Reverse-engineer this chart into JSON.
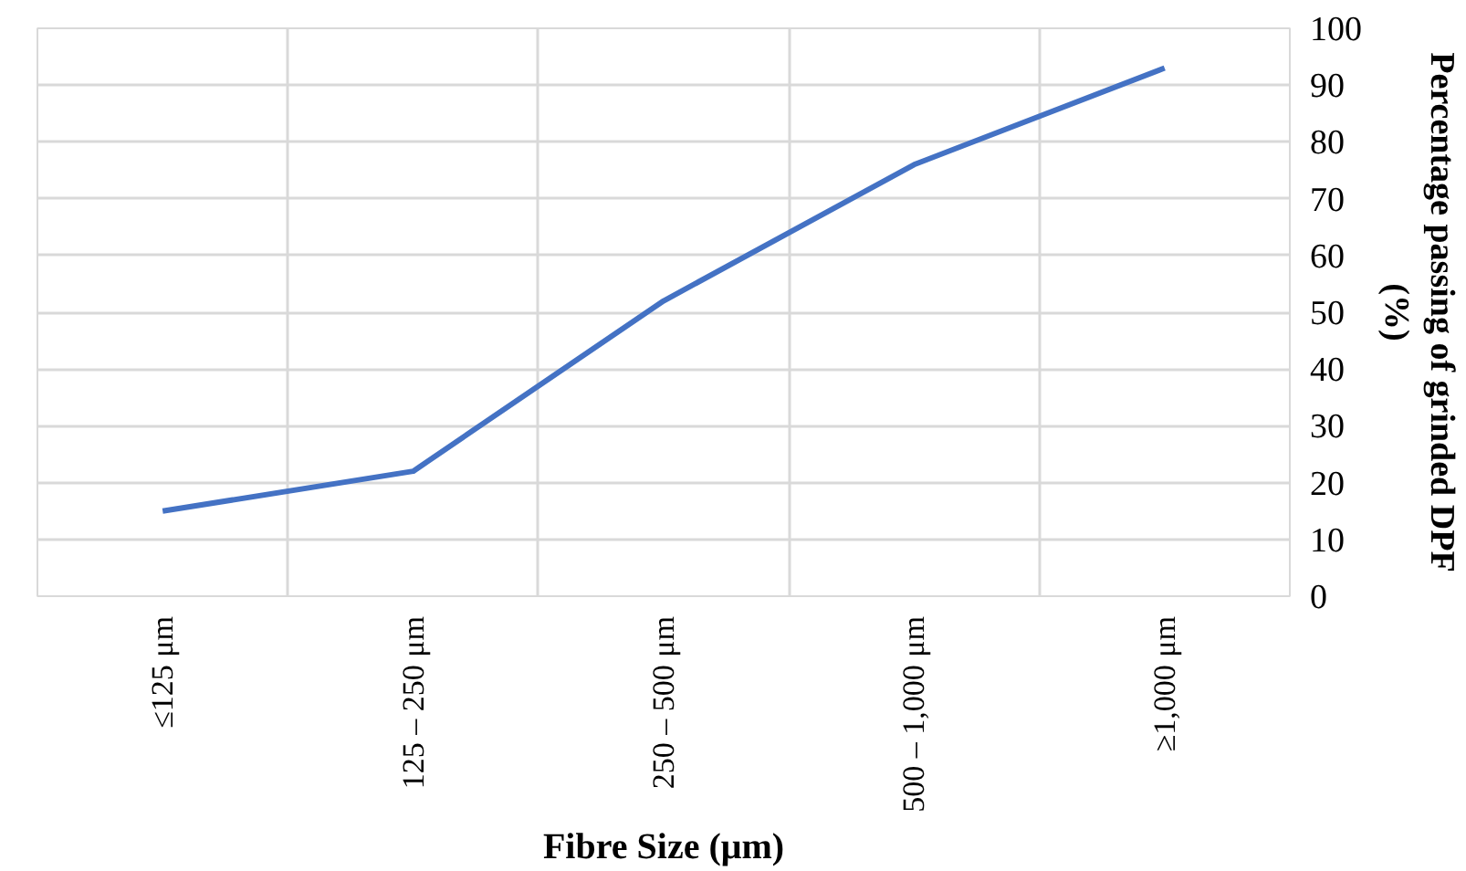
{
  "chart_data": {
    "type": "line",
    "xlabel": "Fibre Size (μm)",
    "ylabel": "Percentage passing of grinded DPF\n(%)",
    "categories": [
      "≤125 μm",
      "125 – 250 μm",
      "250 – 500 μm",
      "500 – 1,000 μm",
      "≥1,000 μm"
    ],
    "series": [
      {
        "color": "#4472c4",
        "values": [
          15,
          22,
          52,
          76,
          93
        ]
      }
    ],
    "ylim": [
      0,
      100
    ],
    "yticks": [
      0,
      10,
      20,
      30,
      40,
      50,
      60,
      70,
      80,
      90,
      100
    ],
    "grid": true,
    "marker": "none",
    "line_style": "solid"
  }
}
